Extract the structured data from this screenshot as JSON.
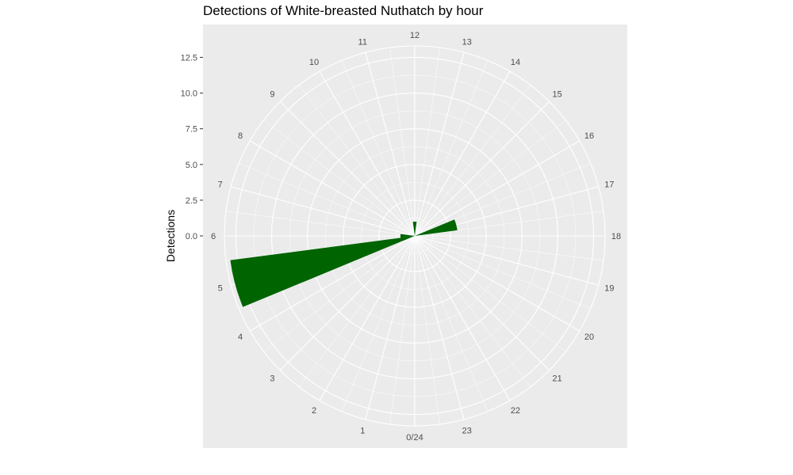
{
  "chart_data": {
    "type": "bar",
    "coord": "polar",
    "title": "Detections of White-breasted Nuthatch by hour",
    "ylabel": "Detections",
    "xlabel": "",
    "y_ticks": [
      "0.0",
      "2.5",
      "5.0",
      "7.5",
      "10.0",
      "12.5"
    ],
    "ylim": [
      0,
      13.3
    ],
    "hour_labels": [
      "0/24",
      "1",
      "2",
      "3",
      "4",
      "5",
      "6",
      "7",
      "8",
      "9",
      "10",
      "11",
      "12",
      "13",
      "14",
      "15",
      "16",
      "17",
      "18",
      "19",
      "20",
      "21",
      "22",
      "23"
    ],
    "categories": [
      0,
      1,
      2,
      3,
      4,
      5,
      6,
      7,
      8,
      9,
      10,
      11,
      12,
      13,
      14,
      15,
      16,
      17,
      18,
      19,
      20,
      21,
      22,
      23
    ],
    "values": [
      0,
      0,
      0,
      0,
      0,
      13,
      1,
      0,
      0,
      0,
      0,
      0,
      1,
      0,
      0,
      0,
      0,
      3,
      0,
      0,
      0,
      0,
      0,
      0
    ],
    "bar_color": "#006400",
    "panel_color": "#ebebeb",
    "grid_color": "#ffffff",
    "grid": true
  }
}
